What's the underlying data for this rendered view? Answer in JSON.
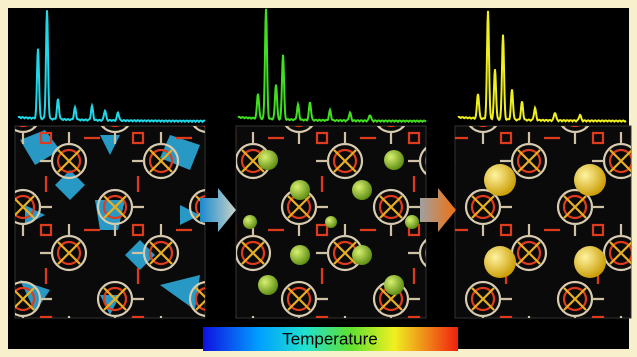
{
  "colorbar": {
    "label": "Temperature"
  }
}
